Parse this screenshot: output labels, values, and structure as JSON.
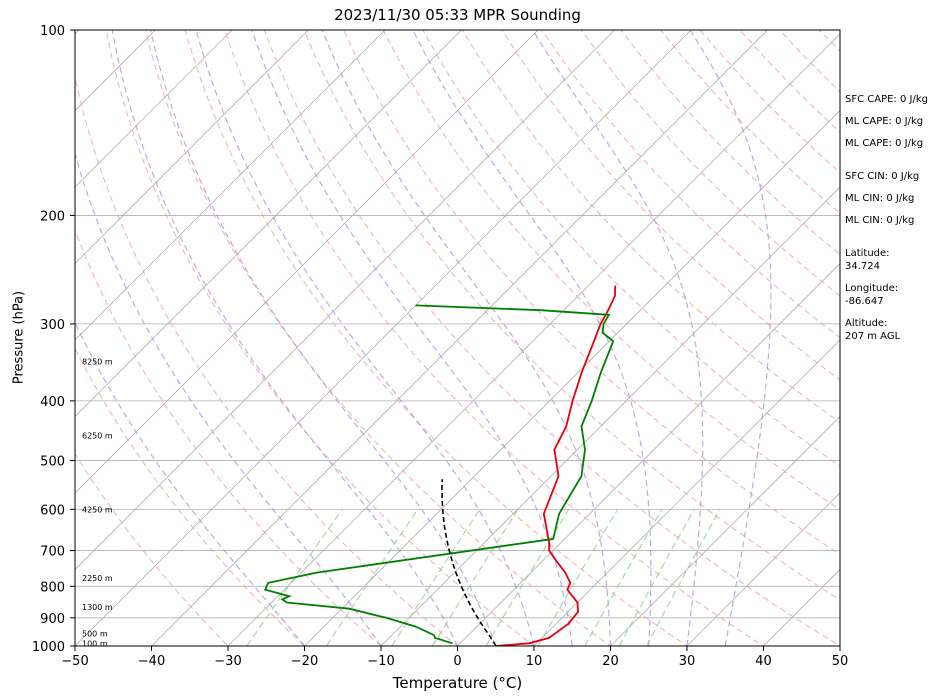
{
  "chart_data": {
    "type": "line",
    "subtype": "skew-t log-p sounding",
    "title": "2023/11/30 05:33 MPR Sounding",
    "xlabel": "Temperature (°C)",
    "ylabel": "Pressure (hPa)",
    "xlim": [
      -50,
      50
    ],
    "ylim": [
      1000,
      100
    ],
    "y_scale": "log",
    "x_ticks": [
      -50,
      -40,
      -30,
      -20,
      -10,
      0,
      10,
      20,
      30,
      40,
      50
    ],
    "x_tick_labels": [
      "−50",
      "−40",
      "−30",
      "−20",
      "−10",
      "0",
      "10",
      "20",
      "30",
      "40",
      "50"
    ],
    "y_ticks": [
      1000,
      900,
      800,
      700,
      600,
      500,
      400,
      300,
      200,
      100
    ],
    "y_tick_labels": [
      "1000",
      "900",
      "800",
      "700",
      "600",
      "500",
      "400",
      "300",
      "200",
      "100"
    ],
    "grid": true,
    "colors": {
      "temperature": "#e8000b",
      "dewpoint": "#008000",
      "parcel": "#000000",
      "isotherm": "#b0b0b0",
      "dry_adiabat": "#f4a0a0",
      "moist_adiabat": "#9f8ff0",
      "mixing_ratio": "#90d090"
    },
    "series": [
      {
        "key": "temperature",
        "x": [
          5,
          9,
          10.9,
          11.6,
          11.3,
          10,
          8.5,
          7,
          6.5,
          4.5,
          2,
          -0.5,
          -1.5,
          -6,
          -9,
          -13,
          -14.5,
          -17,
          -19.5,
          -22,
          -23.4,
          -24.2,
          -25.2,
          -26.5
        ],
        "y": [
          1000,
          990,
          970,
          920,
          880,
          850,
          830,
          810,
          790,
          760,
          730,
          700,
          680,
          610,
          530,
          480,
          440,
          400,
          360,
          320,
          300,
          285,
          270,
          260
        ]
      },
      {
        "key": "dewpoint",
        "x": [
          -1,
          -4,
          -4.5,
          -8,
          -13,
          -19,
          -28,
          -29,
          -28.5,
          -32.5,
          -33,
          -28,
          -1.5,
          -4,
          -6,
          -9,
          -12.5,
          -14.5,
          -17,
          -19.5,
          -22,
          -23,
          -23.5,
          -33,
          -50
        ],
        "y": [
          990,
          970,
          960,
          930,
          900,
          870,
          850,
          840,
          830,
          810,
          790,
          760,
          670,
          610,
          530,
          480,
          440,
          400,
          360,
          320,
          310,
          300,
          290,
          285,
          280
        ]
      },
      {
        "key": "parcel",
        "x": [
          5,
          4.6,
          4.1,
          3.6,
          3.2,
          2.7,
          2.2,
          1.7,
          1.2,
          0.7,
          0.2,
          -0.3,
          -0.8,
          -1.3,
          -1.8,
          -2.3,
          -2.8,
          -3.3,
          -3.8,
          -4.3,
          -4.8,
          -5.3,
          -5.8,
          -6.3,
          -6.8,
          -7.3,
          -7.8,
          -8.3,
          -8.8,
          -9.3,
          -9.8,
          -10.3,
          -10.8,
          -11.3,
          -11.8,
          -12.3,
          -12.8,
          -13.3,
          -13.8,
          -14.3,
          -14.8,
          -15.3,
          -15.8,
          -16.3,
          -16.8,
          -17.3,
          -17.8,
          -18.3,
          -18.8,
          -19.3,
          -19.8,
          -20.3,
          -20.8,
          -21.3,
          -21.8,
          -22.3,
          -22.8,
          -23.3,
          -23.8
        ],
        "y": [
          1000,
          992,
          984,
          976,
          968,
          960,
          952,
          944,
          936,
          928,
          920,
          912,
          904,
          896,
          888,
          880,
          872,
          864,
          856,
          848,
          840,
          832,
          824,
          816,
          808,
          800,
          792,
          784,
          776,
          768,
          760,
          752,
          744,
          736,
          728,
          720,
          712,
          704,
          696,
          688,
          680,
          672,
          664,
          656,
          648,
          640,
          632,
          624,
          616,
          608,
          600,
          592,
          584,
          576,
          568,
          560,
          552,
          544,
          536
        ]
      }
    ],
    "height_labels": [
      {
        "text": "100 m",
        "p": 990
      },
      {
        "text": "500 m",
        "p": 955
      },
      {
        "text": "1300 m",
        "p": 865
      },
      {
        "text": "2250 m",
        "p": 775
      },
      {
        "text": "4250 m",
        "p": 600
      },
      {
        "text": "6250 m",
        "p": 455
      },
      {
        "text": "8250 m",
        "p": 345
      }
    ]
  },
  "side_panel": {
    "sfc_cape": "SFC CAPE: 0 J/kg",
    "ml_cape_1": "ML CAPE: 0 J/kg",
    "ml_cape_2": "ML CAPE: 0 J/kg",
    "sfc_cin": "SFC CIN: 0 J/kg",
    "ml_cin_1": "ML CIN: 0 J/kg",
    "ml_cin_2": "ML CIN: 0 J/kg",
    "latitude_label": "Latitude:",
    "latitude_value": "34.724",
    "longitude_label": "Longitude:",
    "longitude_value": "-86.647",
    "altitude_label": "Altitude:",
    "altitude_value": "207 m AGL"
  }
}
